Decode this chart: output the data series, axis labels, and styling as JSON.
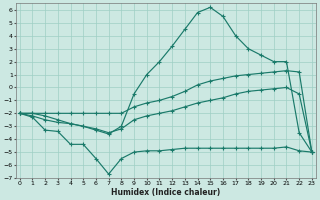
{
  "xlabel": "Humidex (Indice chaleur)",
  "x": [
    0,
    1,
    2,
    3,
    4,
    5,
    6,
    7,
    8,
    9,
    10,
    11,
    12,
    13,
    14,
    15,
    16,
    17,
    18,
    19,
    20,
    21,
    22,
    23
  ],
  "yA": [
    -2.0,
    -2.0,
    -2.0,
    -2.0,
    -2.0,
    -2.0,
    -2.0,
    -2.0,
    -2.0,
    -1.5,
    -1.2,
    -1.0,
    -0.7,
    -0.3,
    0.2,
    0.5,
    0.7,
    0.9,
    1.0,
    1.1,
    1.2,
    1.3,
    1.2,
    -5.0
  ],
  "yB": [
    -2.0,
    -2.2,
    -2.5,
    -2.7,
    -2.8,
    -3.0,
    -3.2,
    -3.5,
    -3.2,
    -2.5,
    -2.2,
    -2.0,
    -1.8,
    -1.5,
    -1.2,
    -1.0,
    -0.8,
    -0.5,
    -0.3,
    -0.2,
    -0.1,
    0.0,
    -0.5,
    -5.0
  ],
  "yC": [
    -2.0,
    -2.3,
    -3.3,
    -3.4,
    -4.4,
    -4.4,
    -5.5,
    -6.7,
    -5.5,
    -5.0,
    -4.9,
    -4.9,
    -4.8,
    -4.7,
    -4.7,
    -4.7,
    -4.7,
    -4.7,
    -4.7,
    -4.7,
    -4.7,
    -4.6,
    -4.9,
    -5.0
  ],
  "yD": [
    -2.0,
    -2.0,
    -2.2,
    -2.5,
    -2.8,
    -3.0,
    -3.3,
    -3.6,
    -3.0,
    -0.5,
    1.0,
    2.0,
    3.2,
    4.5,
    5.8,
    6.2,
    5.5,
    4.0,
    3.0,
    2.5,
    2.0,
    2.0,
    -3.5,
    -5.0
  ],
  "line_color": "#1a7a6a",
  "bg_color": "#cce8e2",
  "grid_color": "#9fcfc5",
  "ylim": [
    -7.0,
    6.5
  ],
  "xlim": [
    -0.3,
    23.3
  ],
  "yticks": [
    -7,
    -6,
    -5,
    -4,
    -3,
    -2,
    -1,
    0,
    1,
    2,
    3,
    4,
    5,
    6
  ],
  "xticks": [
    0,
    1,
    2,
    3,
    4,
    5,
    6,
    7,
    8,
    9,
    10,
    11,
    12,
    13,
    14,
    15,
    16,
    17,
    18,
    19,
    20,
    21,
    22,
    23
  ]
}
